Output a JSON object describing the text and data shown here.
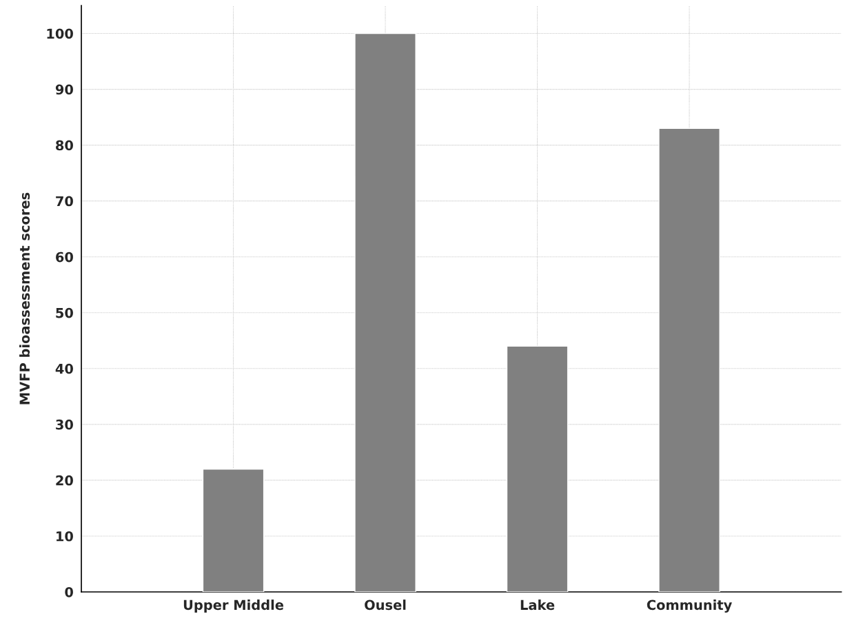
{
  "chart_data": {
    "type": "bar",
    "ylabel": "MVFP bioassessment scores",
    "categories": [
      "Upper Middle",
      "Ousel",
      "Lake",
      "Community"
    ],
    "values": [
      22,
      100,
      44,
      83
    ],
    "color": "#808080",
    "ylim": [
      0,
      105
    ],
    "yticks": [
      0,
      10,
      20,
      30,
      40,
      50,
      60,
      70,
      80,
      90,
      100
    ],
    "grid": true
  }
}
